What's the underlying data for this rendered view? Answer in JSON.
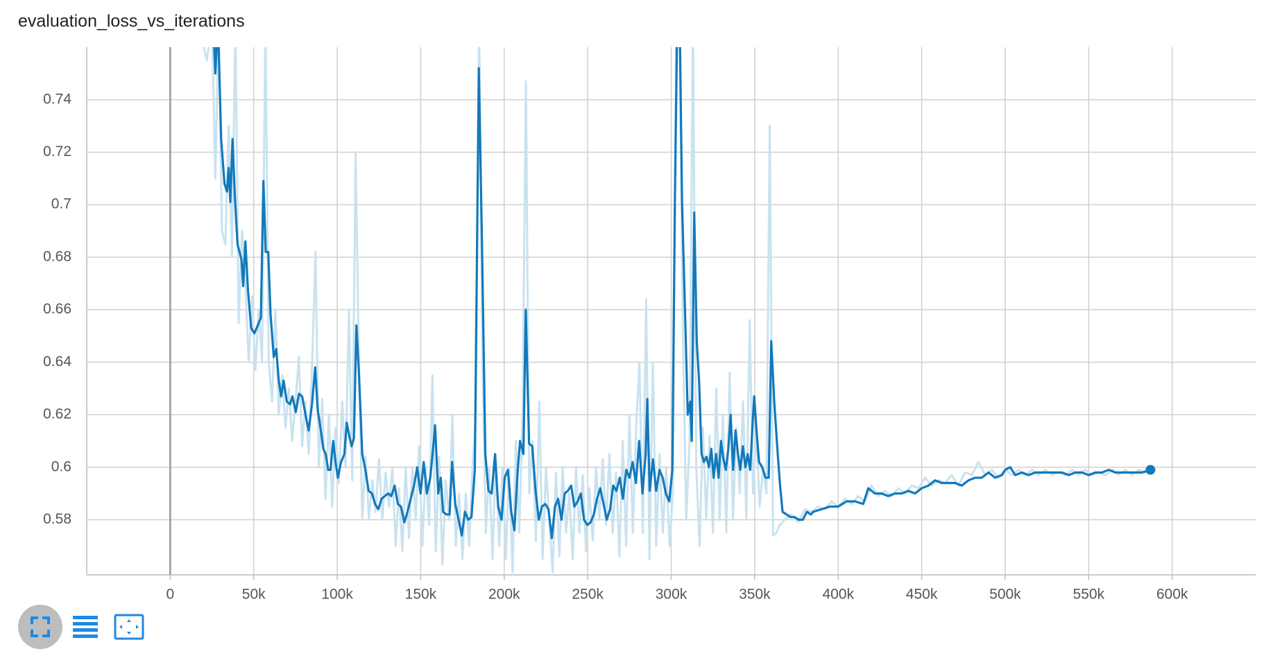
{
  "chart_data": {
    "type": "line",
    "title": "evaluation_loss_vs_iterations",
    "xlim": [
      -50000,
      650000
    ],
    "ylim": [
      0.559,
      0.76
    ],
    "xticks": [
      0,
      {
        "value": 50000,
        "label": "50k"
      },
      {
        "value": 100000,
        "label": "100k"
      },
      {
        "value": 150000,
        "label": "150k"
      },
      {
        "value": 200000,
        "label": "200k"
      },
      {
        "value": 250000,
        "label": "250k"
      },
      {
        "value": 300000,
        "label": "300k"
      },
      {
        "value": 350000,
        "label": "350k"
      },
      {
        "value": 400000,
        "label": "400k"
      },
      {
        "value": 450000,
        "label": "450k"
      },
      {
        "value": 500000,
        "label": "500k"
      },
      {
        "value": 550000,
        "label": "550k"
      },
      {
        "value": 600000,
        "label": "600k"
      }
    ],
    "yticks": [
      0.58,
      0.6,
      0.62,
      0.64,
      0.66,
      0.68,
      0.7,
      0.72,
      0.74
    ],
    "grid": true,
    "series": [
      {
        "color": "#c9e2ef",
        "x": [
          16000,
          22000,
          25000,
          27000,
          29000,
          31000,
          33000,
          35000,
          37000,
          39000,
          41000,
          43000,
          45000,
          47000,
          49000,
          51000,
          53000,
          55000,
          57000,
          59000,
          61000,
          63000,
          65000,
          67000,
          69000,
          71000,
          73000,
          75000,
          77000,
          79000,
          81000,
          83000,
          85000,
          87000,
          89000,
          91000,
          93000,
          95000,
          97000,
          99000,
          101000,
          103000,
          105000,
          107000,
          109000,
          111000,
          113000,
          115000,
          117000,
          119000,
          121000,
          123000,
          125000,
          127000,
          129000,
          131000,
          133000,
          135000,
          137000,
          139000,
          141000,
          143000,
          145000,
          147000,
          149000,
          151000,
          153000,
          155000,
          157000,
          159000,
          161000,
          163000,
          165000,
          167000,
          169000,
          171000,
          173000,
          175000,
          177000,
          179000,
          181000,
          183000,
          185000,
          187000,
          189000,
          191000,
          193000,
          195000,
          197000,
          199000,
          201000,
          203000,
          205000,
          207000,
          209000,
          211000,
          213000,
          215000,
          217000,
          219000,
          221000,
          223000,
          225000,
          227000,
          229000,
          231000,
          233000,
          235000,
          237000,
          239000,
          241000,
          243000,
          245000,
          247000,
          249000,
          251000,
          253000,
          255000,
          257000,
          259000,
          261000,
          263000,
          265000,
          267000,
          269000,
          271000,
          273000,
          275000,
          277000,
          279000,
          281000,
          283000,
          285000,
          287000,
          289000,
          291000,
          293000,
          295000,
          297000,
          299000,
          301000,
          303000,
          305000,
          307000,
          309000,
          311000,
          313000,
          315000,
          317000,
          319000,
          321000,
          323000,
          325000,
          327000,
          329000,
          331000,
          333000,
          335000,
          337000,
          339000,
          341000,
          343000,
          345000,
          347000,
          349000,
          351000,
          353000,
          355000,
          357000,
          359000,
          361000,
          363000,
          365000,
          368000,
          372000,
          376000,
          380000,
          384000,
          388000,
          392000,
          396000,
          400000,
          404000,
          408000,
          412000,
          416000,
          420000,
          424000,
          428000,
          432000,
          436000,
          440000,
          444000,
          448000,
          452000,
          456000,
          460000,
          464000,
          468000,
          472000,
          476000,
          480000,
          484000,
          488000,
          492000,
          496000,
          500000,
          504000,
          508000,
          512000,
          516000,
          520000,
          524000,
          528000,
          532000,
          536000,
          540000,
          544000,
          548000,
          552000,
          556000,
          560000,
          564000,
          568000,
          572000,
          576000,
          580000,
          584000,
          587000
        ],
        "values": [
          0.77,
          0.755,
          0.77,
          0.71,
          0.77,
          0.69,
          0.685,
          0.73,
          0.68,
          0.77,
          0.655,
          0.69,
          0.67,
          0.64,
          0.665,
          0.637,
          0.66,
          0.64,
          0.77,
          0.64,
          0.625,
          0.66,
          0.62,
          0.635,
          0.615,
          0.63,
          0.61,
          0.625,
          0.642,
          0.608,
          0.625,
          0.605,
          0.64,
          0.682,
          0.6,
          0.626,
          0.588,
          0.62,
          0.585,
          0.615,
          0.594,
          0.625,
          0.6,
          0.66,
          0.595,
          0.72,
          0.64,
          0.58,
          0.604,
          0.58,
          0.595,
          0.583,
          0.603,
          0.58,
          0.598,
          0.585,
          0.6,
          0.57,
          0.592,
          0.568,
          0.6,
          0.573,
          0.6,
          0.58,
          0.608,
          0.57,
          0.6,
          0.578,
          0.635,
          0.568,
          0.604,
          0.563,
          0.595,
          0.58,
          0.62,
          0.57,
          0.59,
          0.565,
          0.59,
          0.57,
          0.6,
          0.62,
          0.77,
          0.64,
          0.575,
          0.6,
          0.565,
          0.605,
          0.57,
          0.6,
          0.565,
          0.6,
          0.56,
          0.61,
          0.575,
          0.62,
          0.747,
          0.59,
          0.61,
          0.572,
          0.625,
          0.565,
          0.6,
          0.58,
          0.56,
          0.598,
          0.566,
          0.6,
          0.575,
          0.59,
          0.565,
          0.6,
          0.575,
          0.597,
          0.568,
          0.592,
          0.572,
          0.6,
          0.58,
          0.603,
          0.578,
          0.605,
          0.575,
          0.598,
          0.566,
          0.61,
          0.57,
          0.62,
          0.575,
          0.615,
          0.64,
          0.575,
          0.664,
          0.565,
          0.64,
          0.57,
          0.605,
          0.575,
          0.6,
          0.57,
          0.59,
          0.77,
          0.77,
          0.65,
          0.58,
          0.61,
          0.77,
          0.6,
          0.57,
          0.615,
          0.58,
          0.612,
          0.575,
          0.63,
          0.58,
          0.62,
          0.575,
          0.636,
          0.58,
          0.615,
          0.59,
          0.625,
          0.58,
          0.656,
          0.59,
          0.614,
          0.585,
          0.6,
          0.59,
          0.73,
          0.574,
          0.575,
          0.578,
          0.58,
          0.582,
          0.579,
          0.584,
          0.583,
          0.585,
          0.584,
          0.587,
          0.585,
          0.588,
          0.586,
          0.589,
          0.587,
          0.593,
          0.589,
          0.591,
          0.589,
          0.592,
          0.59,
          0.593,
          0.592,
          0.596,
          0.593,
          0.595,
          0.594,
          0.597,
          0.593,
          0.598,
          0.597,
          0.602,
          0.597,
          0.599,
          0.596,
          0.599,
          0.597,
          0.599,
          0.597,
          0.599,
          0.597,
          0.599,
          0.597,
          0.598,
          0.597,
          0.599,
          0.597,
          0.599,
          0.597,
          0.598,
          0.597,
          0.599,
          0.597,
          0.599,
          0.597,
          0.599,
          0.598,
          0.599
        ]
      },
      {
        "color": "#1279bb",
        "x": [
          16500,
          25700,
          27000,
          28600,
          30500,
          32500,
          34000,
          35000,
          36000,
          37300,
          38800,
          40300,
          42700,
          43700,
          45000,
          46600,
          48500,
          50400,
          52400,
          54300,
          55800,
          57200,
          58700,
          60100,
          62000,
          63500,
          65000,
          66400,
          67900,
          69800,
          71800,
          73200,
          75200,
          77100,
          79000,
          81000,
          82900,
          84900,
          86800,
          88300,
          90200,
          91700,
          93100,
          94600,
          96000,
          97600,
          99000,
          100400,
          102300,
          104300,
          105700,
          107200,
          108600,
          110000,
          111500,
          113000,
          115000,
          116900,
          118800,
          120800,
          122700,
          124600,
          126600,
          128500,
          130500,
          132400,
          134400,
          136300,
          138200,
          140200,
          142100,
          144000,
          146000,
          147900,
          149900,
          151800,
          153700,
          155700,
          157100,
          158600,
          160500,
          162000,
          163400,
          165400,
          167300,
          168800,
          170700,
          172700,
          174600,
          176500,
          178500,
          180400,
          182400,
          184800,
          186700,
          188700,
          190600,
          192500,
          194500,
          196400,
          198400,
          200300,
          202200,
          204200,
          206100,
          208100,
          209500,
          211500,
          212900,
          214900,
          216800,
          218800,
          220700,
          222600,
          224600,
          226500,
          228500,
          230400,
          232300,
          234300,
          236200,
          238100,
          240100,
          242000,
          244000,
          245900,
          247800,
          249800,
          251700,
          253700,
          255600,
          257500,
          259500,
          261400,
          263400,
          265300,
          267200,
          269200,
          271100,
          273100,
          275000,
          276900,
          278900,
          280800,
          282800,
          284700,
          285700,
          287100,
          289100,
          291000,
          293000,
          294900,
          296800,
          298800,
          300700,
          302200,
          303600,
          305100,
          306500,
          308500,
          309900,
          311400,
          312300,
          313800,
          315300,
          316700,
          318200,
          319600,
          321100,
          322600,
          324000,
          325400,
          326900,
          328400,
          329800,
          331300,
          332700,
          334200,
          335600,
          337100,
          338500,
          340000,
          341400,
          342900,
          344400,
          345800,
          347300,
          348700,
          349700,
          351100,
          352600,
          354500,
          356500,
          358400,
          359900,
          361800,
          363800,
          365200,
          366700,
          369100,
          371500,
          373900,
          376400,
          378800,
          381200,
          383600,
          385000,
          390000,
          395000,
          400000,
          405000,
          410000,
          415000,
          418000,
          422000,
          426000,
          430000,
          434000,
          438000,
          442000,
          446000,
          450000,
          454000,
          458000,
          462000,
          466000,
          470000,
          474000,
          478000,
          482000,
          486000,
          490000,
          494000,
          498000,
          500000,
          503000,
          506000,
          510000,
          514000,
          518000,
          522000,
          526000,
          530000,
          534000,
          538000,
          542000,
          546000,
          550000,
          554000,
          558000,
          562000,
          566000,
          570000,
          574000,
          578000,
          582000,
          587000
        ],
        "values": [
          0.77,
          0.77,
          0.75,
          0.77,
          0.725,
          0.708,
          0.705,
          0.714,
          0.701,
          0.725,
          0.702,
          0.685,
          0.679,
          0.669,
          0.686,
          0.667,
          0.653,
          0.651,
          0.654,
          0.657,
          0.709,
          0.682,
          0.682,
          0.658,
          0.642,
          0.645,
          0.633,
          0.627,
          0.633,
          0.625,
          0.624,
          0.627,
          0.621,
          0.628,
          0.627,
          0.62,
          0.614,
          0.624,
          0.638,
          0.622,
          0.614,
          0.607,
          0.605,
          0.599,
          0.599,
          0.61,
          0.602,
          0.596,
          0.602,
          0.605,
          0.617,
          0.612,
          0.608,
          0.611,
          0.654,
          0.636,
          0.605,
          0.599,
          0.591,
          0.59,
          0.586,
          0.584,
          0.588,
          0.589,
          0.59,
          0.589,
          0.593,
          0.586,
          0.585,
          0.579,
          0.583,
          0.588,
          0.593,
          0.6,
          0.59,
          0.602,
          0.59,
          0.596,
          0.605,
          0.616,
          0.59,
          0.596,
          0.583,
          0.582,
          0.582,
          0.602,
          0.586,
          0.58,
          0.574,
          0.583,
          0.58,
          0.581,
          0.599,
          0.752,
          0.685,
          0.605,
          0.591,
          0.59,
          0.605,
          0.585,
          0.58,
          0.596,
          0.599,
          0.583,
          0.576,
          0.599,
          0.61,
          0.605,
          0.66,
          0.609,
          0.608,
          0.591,
          0.58,
          0.585,
          0.586,
          0.584,
          0.573,
          0.585,
          0.588,
          0.58,
          0.59,
          0.591,
          0.593,
          0.585,
          0.587,
          0.59,
          0.58,
          0.578,
          0.579,
          0.582,
          0.588,
          0.592,
          0.586,
          0.58,
          0.584,
          0.593,
          0.591,
          0.596,
          0.588,
          0.599,
          0.596,
          0.602,
          0.594,
          0.61,
          0.59,
          0.605,
          0.626,
          0.591,
          0.603,
          0.591,
          0.599,
          0.596,
          0.59,
          0.587,
          0.599,
          0.701,
          0.77,
          0.77,
          0.701,
          0.654,
          0.62,
          0.625,
          0.61,
          0.697,
          0.648,
          0.633,
          0.605,
          0.602,
          0.604,
          0.6,
          0.607,
          0.596,
          0.605,
          0.596,
          0.61,
          0.603,
          0.599,
          0.607,
          0.62,
          0.599,
          0.614,
          0.605,
          0.599,
          0.608,
          0.6,
          0.605,
          0.599,
          0.616,
          0.627,
          0.614,
          0.602,
          0.6,
          0.596,
          0.596,
          0.648,
          0.624,
          0.605,
          0.593,
          0.583,
          0.582,
          0.581,
          0.581,
          0.58,
          0.58,
          0.583,
          0.582,
          0.583,
          0.584,
          0.585,
          0.585,
          0.587,
          0.587,
          0.586,
          0.592,
          0.59,
          0.59,
          0.589,
          0.59,
          0.59,
          0.591,
          0.59,
          0.592,
          0.593,
          0.595,
          0.594,
          0.594,
          0.594,
          0.593,
          0.595,
          0.596,
          0.596,
          0.598,
          0.596,
          0.597,
          0.599,
          0.6,
          0.597,
          0.598,
          0.597,
          0.598,
          0.598,
          0.598,
          0.598,
          0.598,
          0.597,
          0.598,
          0.598,
          0.597,
          0.598,
          0.598,
          0.599,
          0.598,
          0.598,
          0.598,
          0.598,
          0.598,
          0.599
        ]
      }
    ]
  }
}
